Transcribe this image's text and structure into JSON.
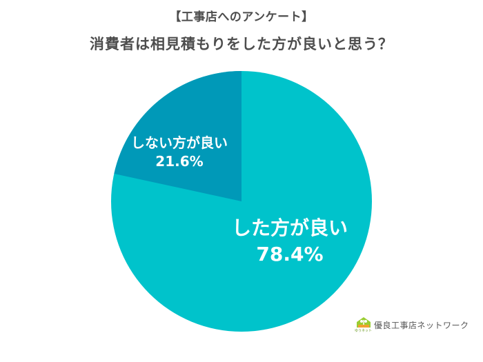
{
  "header": {
    "survey_label": "【工事店へのアンケート】",
    "question": "消費者は相見積もりをした方が良いと思う？"
  },
  "chart_data": {
    "type": "pie",
    "title": "【工事店へのアンケート】消費者は相見積もりをした方が良いと思う？",
    "categories": [
      "した方が良い",
      "しない方が良い"
    ],
    "values": [
      78.4,
      21.6
    ],
    "unit": "%",
    "colors": [
      "#00c3cb",
      "#0099b8"
    ],
    "start_angle": "12 o'clock",
    "data_labels": [
      {
        "name": "した方が良い",
        "value": "78.4%"
      },
      {
        "name": "しない方が良い",
        "value": "21.6%"
      }
    ],
    "legend": "none"
  },
  "labels": {
    "yes_name": "した方が良い",
    "yes_value": "78.4%",
    "no_name": "しない方が良い",
    "no_value": "21.6%"
  },
  "footer": {
    "logo_text": "優良工事店ネットワーク",
    "logo_small": "ゆうネット"
  }
}
